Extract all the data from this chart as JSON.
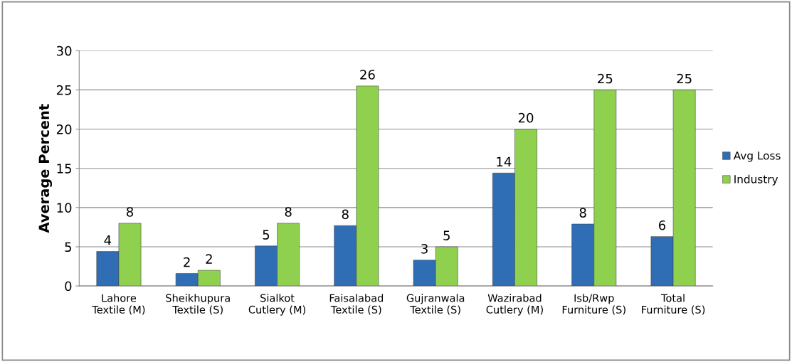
{
  "chart_data": {
    "type": "bar",
    "ylabel": "Average Percent",
    "categories": [
      "Lahore\nTextile (M)",
      "Sheikhupura\nTextile (S)",
      "Sialkot\nCutlery (M)",
      "Faisalabad\nTextile (S)",
      "Gujranwala\nTextile (S)",
      "Wazirabad\nCutlery (M)",
      "Isb/Rwp\nFurniture (S)",
      "Total\nFurniture (S)"
    ],
    "series": [
      {
        "name": "Avg Loss",
        "color": "#2f6db5",
        "values": [
          4.4,
          1.6,
          5.1,
          7.7,
          3.3,
          14.4,
          7.9,
          6.3
        ],
        "value_labels": [
          "4",
          "2",
          "5",
          "8",
          "3",
          "14",
          "8",
          "6"
        ]
      },
      {
        "name": "Industry",
        "color": "#8fd14f",
        "values": [
          8.0,
          2.0,
          8.0,
          25.5,
          5.0,
          20.0,
          25.0,
          25.0
        ],
        "value_labels": [
          "8",
          "2",
          "8",
          "26",
          "5",
          "20",
          "25",
          "25"
        ]
      }
    ],
    "ylim": [
      0,
      30
    ],
    "yticks": [
      0,
      5,
      10,
      15,
      20,
      25,
      30
    ],
    "grid": "y",
    "legend": "right"
  }
}
